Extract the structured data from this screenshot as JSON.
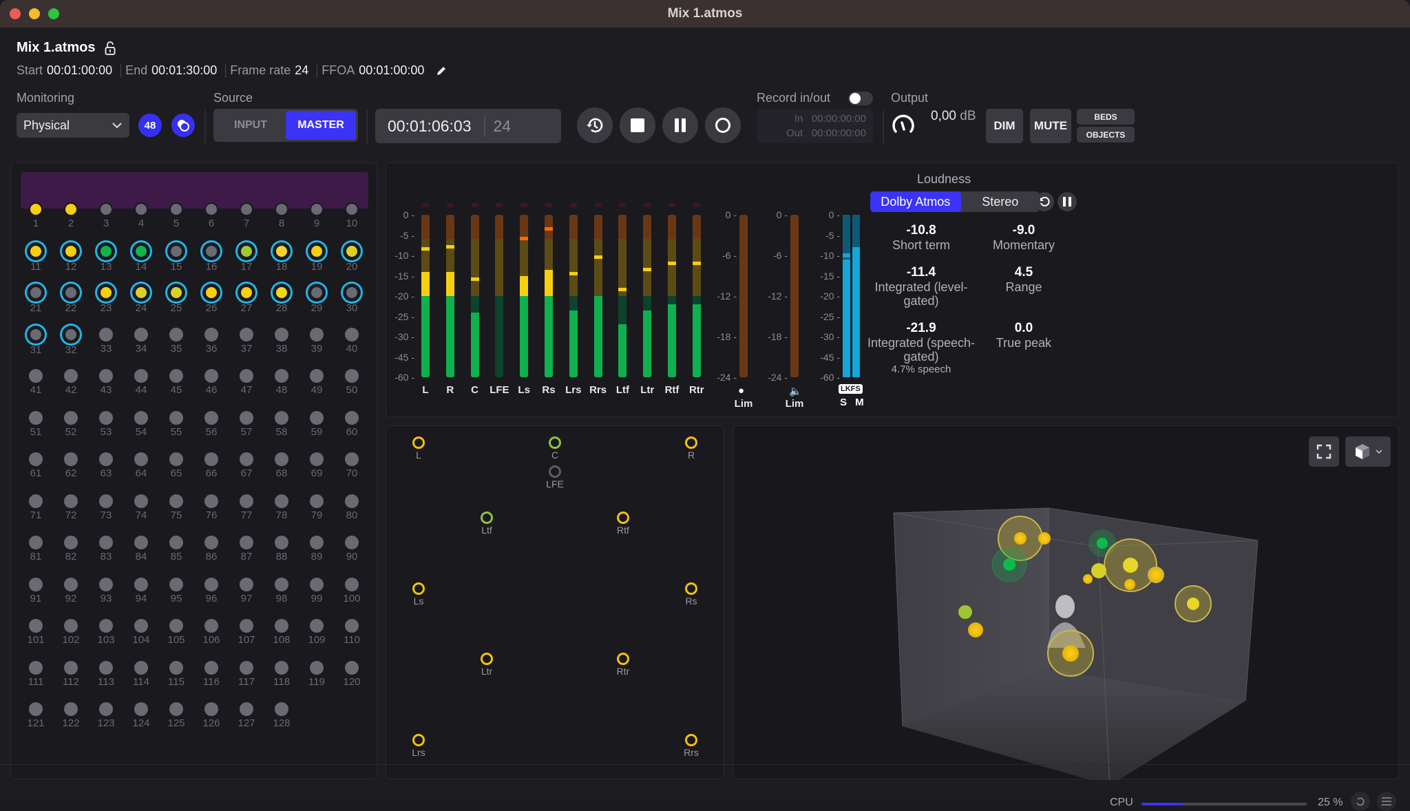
{
  "window": {
    "title": "Mix 1.atmos",
    "traffic_colors": [
      "#ed5d55",
      "#f5bb2d",
      "#2fc43f"
    ]
  },
  "header": {
    "file_name": "Mix 1.atmos",
    "start_label": "Start",
    "start": "00:01:00:00",
    "end_label": "End",
    "end": "00:01:30:00",
    "frame_rate_label": "Frame rate",
    "frame_rate": "24",
    "ffoa_label": "FFOA",
    "ffoa": "00:01:00:00"
  },
  "monitoring": {
    "label": "Monitoring",
    "selected": "Physical",
    "rate_badge": "48"
  },
  "source": {
    "label": "Source",
    "options": [
      "INPUT",
      "MASTER"
    ],
    "selected": "MASTER"
  },
  "transport": {
    "timecode": "00:01:06:03",
    "frames": "24"
  },
  "record": {
    "label": "Record in/out",
    "in_label": "In",
    "in": "00:00:00:00",
    "out_label": "Out",
    "out": "00:00:00:00"
  },
  "output": {
    "label": "Output",
    "gain": "0,00",
    "unit": "dB",
    "dim": "DIM",
    "mute": "MUTE",
    "beds": "BEDS",
    "objects": "OBJECTS"
  },
  "objects": {
    "count": 128,
    "bed_row_colors": [
      "#f5cf10",
      "#f5cf10",
      "#6a6a72",
      "#6a6a72",
      "#6a6a72",
      "#6a6a72",
      "#6a6a72",
      "#6a6a72",
      "#6a6a72",
      "#6a6a72"
    ],
    "active": {
      "11": "#f5cf10",
      "12": "#f5cf10",
      "13": "#11b34a",
      "14": "#11b34a",
      "15": "#6a6a72",
      "16": "#6a6a72",
      "17": "#9fc930",
      "18": "#f2d52a",
      "19": "#f5cf10",
      "20": "#dccf2a",
      "21": "#6a6a72",
      "22": "#6a6a72",
      "23": "#f5cf10",
      "24": "#d9cf2a",
      "25": "#d9d02a",
      "26": "#f5cf10",
      "27": "#f5cf10",
      "28": "#f5d71a",
      "29": "#6a6a72",
      "30": "#6a6a72",
      "31": "#6a6a72",
      "32": "#6a6a72"
    }
  },
  "meters": {
    "axis": [
      "0",
      "-5",
      "-10",
      "-15",
      "-20",
      "-25",
      "-30",
      "-45",
      "-60"
    ],
    "channels": [
      {
        "name": "L",
        "level": -14,
        "peak": -8
      },
      {
        "name": "R",
        "level": -14,
        "peak": -7.5
      },
      {
        "name": "C",
        "level": -24,
        "peak": -15.5
      },
      {
        "name": "LFE",
        "level": -60,
        "peak": null
      },
      {
        "name": "Ls",
        "level": -15,
        "peak": -5.5,
        "hot": true
      },
      {
        "name": "Rs",
        "level": -13.5,
        "peak": -3,
        "hot": true
      },
      {
        "name": "Lrs",
        "level": -23.5,
        "peak": -14
      },
      {
        "name": "Rrs",
        "level": -20,
        "peak": -10
      },
      {
        "name": "Ltf",
        "level": -27,
        "peak": -18
      },
      {
        "name": "Ltr",
        "level": -23.5,
        "peak": -13
      },
      {
        "name": "Rtf",
        "level": -22,
        "peak": -11.5
      },
      {
        "name": "Rtr",
        "level": -22,
        "peak": -11.5
      }
    ],
    "lim_axis": [
      "0",
      "-6",
      "-12",
      "-18",
      "-24"
    ],
    "lim1_label": "Lim",
    "lim2_label": "Lim",
    "lkfs_axis": [
      "0",
      "-5",
      "-10",
      "-15",
      "-20",
      "-25",
      "-30",
      "-45",
      "-60"
    ],
    "lkfs_badge": "LKFS",
    "s_label": "S",
    "m_label": "M"
  },
  "loudness": {
    "title": "Loudness",
    "tabs": [
      "Dolby Atmos",
      "Stereo"
    ],
    "selected": "Dolby Atmos",
    "values": [
      {
        "value": "-10.8",
        "name": "Short term"
      },
      {
        "value": "-9.0",
        "name": "Momentary"
      },
      {
        "value": "-11.4",
        "name": "Integrated (level-gated)"
      },
      {
        "value": "4.5",
        "name": "Range"
      },
      {
        "value": "-21.9",
        "name": "Integrated (speech-gated)"
      },
      {
        "value": "0.0",
        "name": "True peak"
      }
    ],
    "speech": "4.7% speech"
  },
  "speakers": [
    {
      "name": "L",
      "color": "#f2c10f"
    },
    {
      "name": "C",
      "color": "#8fc43a"
    },
    {
      "name": "R",
      "color": "#f2c10f"
    },
    {
      "name": "LFE",
      "color": "#5e5d63"
    },
    {
      "name": "Ltf",
      "color": "#8fc43a"
    },
    {
      "name": "Rtf",
      "color": "#f2c10f"
    },
    {
      "name": "Ls",
      "color": "#f2c10f"
    },
    {
      "name": "Rs",
      "color": "#f2c10f"
    },
    {
      "name": "Ltr",
      "color": "#f2c10f"
    },
    {
      "name": "Rtr",
      "color": "#f2c10f"
    },
    {
      "name": "Lrs",
      "color": "#f2c10f"
    },
    {
      "name": "Rrs",
      "color": "#f2c10f"
    }
  ],
  "status": {
    "cpu_label": "CPU",
    "cpu_value": "25 %",
    "cpu_pct": 25
  },
  "colors": {
    "accent": "#3b33f5",
    "bed_band": "#3d1a48",
    "ring": "#22b5e6",
    "meter_green": "#0fb04e",
    "meter_yellow": "#f5cf10",
    "lkfs": "#13a6d9"
  }
}
